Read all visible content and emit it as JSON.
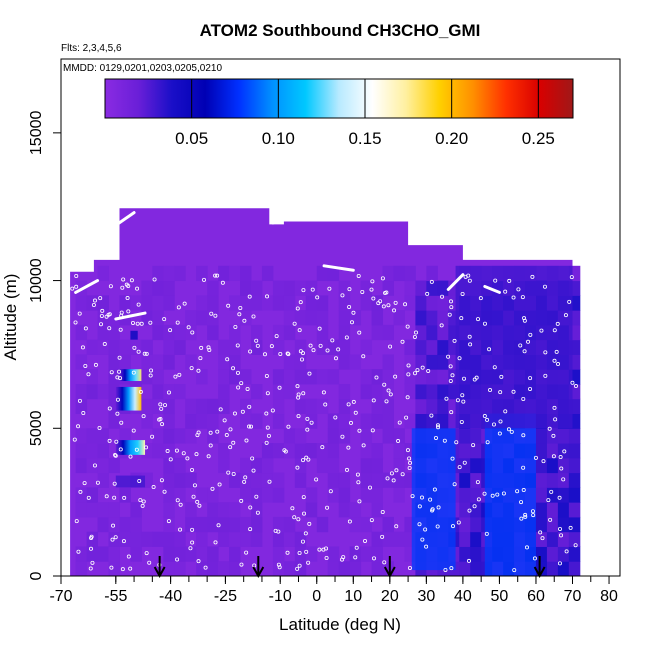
{
  "chart_data": {
    "type": "heatmap",
    "title": "ATOM2 Southbound CH3CHO_GMI",
    "subtitle_flights": "Flts: 2,3,4,5,6",
    "subtitle_dates": "MMDD: 0129,0201,0203,0205,0210",
    "xlabel": "Latitude (deg N)",
    "ylabel": "Altitude (m)",
    "xlim": [
      -70,
      83
    ],
    "ylim": [
      0,
      17500
    ],
    "x_ticks": [
      -70,
      -55,
      -40,
      -25,
      -10,
      0,
      10,
      20,
      30,
      40,
      50,
      60,
      70,
      80
    ],
    "y_ticks": [
      0,
      5000,
      10000,
      15000
    ],
    "colorbar": {
      "min": 0.0,
      "max": 0.27,
      "ticks": [
        0.05,
        0.1,
        0.15,
        0.2,
        0.25
      ],
      "tick_labels": [
        "0.05",
        "0.10",
        "0.15",
        "0.20",
        "0.25"
      ],
      "colors": [
        "#8a2be2",
        "#6a1fd8",
        "#1a0fc8",
        "#0000b4",
        "#0030ff",
        "#0090ff",
        "#00c8ff",
        "#b8eaff",
        "#ffffff",
        "#fff0a0",
        "#ffd000",
        "#ff9000",
        "#ff3000",
        "#d80000",
        "#a01818"
      ]
    },
    "background_value": 0.005,
    "features": [
      {
        "lat_min": -55,
        "lat_max": -48,
        "alt_min": 5600,
        "alt_max": 6400,
        "value": 0.2
      },
      {
        "lat_min": -55,
        "lat_max": -47,
        "alt_min": 4100,
        "alt_max": 4600,
        "value": 0.17
      },
      {
        "lat_min": -54,
        "lat_max": -48,
        "alt_min": 6600,
        "alt_max": 7000,
        "value": 0.18
      },
      {
        "lat_min": -51,
        "lat_max": -49,
        "alt_min": 8000,
        "alt_max": 8300,
        "value": 0.06
      },
      {
        "lat_min": -55,
        "lat_max": -47,
        "alt_min": 3000,
        "alt_max": 3400,
        "value": 0.03
      },
      {
        "lat_min": 26,
        "lat_max": 38,
        "alt_min": 200,
        "alt_max": 5000,
        "value": 0.08
      },
      {
        "lat_min": 46,
        "lat_max": 60,
        "alt_min": 0,
        "alt_max": 5500,
        "value": 0.08
      },
      {
        "lat_min": 38,
        "lat_max": 70,
        "alt_min": 5000,
        "alt_max": 10500,
        "value": 0.03
      }
    ],
    "flight_arrows_lat": [
      -43,
      -16,
      20,
      61
    ],
    "bottom_ticks_lat": [
      -55,
      -50,
      -45,
      -40,
      -35,
      -30,
      -25,
      -20,
      -15,
      -10,
      -5,
      0,
      5,
      10,
      15,
      20,
      25,
      30,
      35,
      40,
      45,
      50,
      55,
      60,
      65,
      70,
      75
    ]
  }
}
